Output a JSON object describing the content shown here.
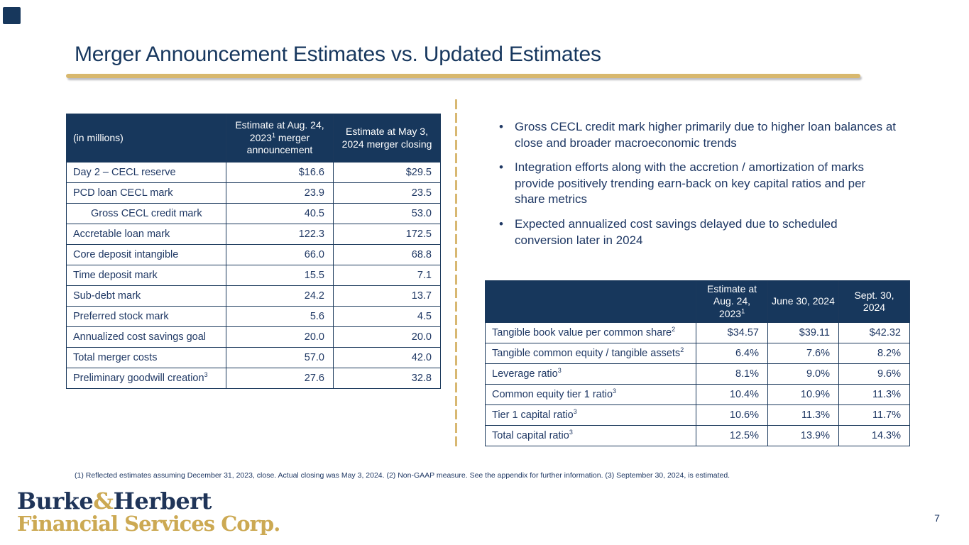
{
  "slide": {
    "title": "Merger Announcement Estimates vs. Updated Estimates",
    "page_number": "7",
    "footnote": "(1) Reflected estimates assuming December 31, 2023, close.  Actual closing was May 3, 2024. (2) Non-GAAP measure. See the appendix for further information. (3) September 30, 2024, is estimated.",
    "colors": {
      "navy": "#1F3864",
      "table_header_bg": "#17375C",
      "gold": "#D8B86E",
      "logo_gold": "#CCA953"
    }
  },
  "logo": {
    "burke": "Burke",
    "amp": "&",
    "herbert": "Herbert",
    "line2": "Financial Services Corp."
  },
  "left_table": {
    "headers": [
      "(in millions)",
      "Estimate at Aug. 24, 2023^1 merger announcement",
      "Estimate at May 3, 2024 merger closing"
    ],
    "rows": [
      {
        "label": "Day 2 – CECL reserve",
        "indent": false,
        "values": [
          "$16.6",
          "$29.5"
        ]
      },
      {
        "label": "PCD loan CECL mark",
        "indent": false,
        "values": [
          "23.9",
          "23.5"
        ]
      },
      {
        "label": "Gross CECL credit mark",
        "indent": true,
        "values": [
          "40.5",
          "53.0"
        ]
      },
      {
        "label": "Accretable loan mark",
        "indent": false,
        "values": [
          "122.3",
          "172.5"
        ]
      },
      {
        "label": "Core deposit intangible",
        "indent": false,
        "values": [
          "66.0",
          "68.8"
        ]
      },
      {
        "label": "Time deposit mark",
        "indent": false,
        "values": [
          "15.5",
          "7.1"
        ]
      },
      {
        "label": "Sub-debt mark",
        "indent": false,
        "values": [
          "24.2",
          "13.7"
        ]
      },
      {
        "label": "Preferred stock mark",
        "indent": false,
        "values": [
          "5.6",
          "4.5"
        ]
      },
      {
        "label": "Annualized cost savings goal",
        "indent": false,
        "values": [
          "20.0",
          "20.0"
        ]
      },
      {
        "label": "Total merger costs",
        "indent": false,
        "values": [
          "57.0",
          "42.0"
        ]
      },
      {
        "label": "Preliminary goodwill creation^3",
        "indent": false,
        "values": [
          "27.6",
          "32.8"
        ]
      }
    ]
  },
  "bullets": [
    "Gross CECL credit mark higher primarily due to higher loan balances at close and broader macroeconomic trends",
    "Integration efforts along with the accretion / amortization of marks provide positively trending earn-back on key capital ratios and per share metrics",
    "Expected annualized cost savings delayed due to scheduled conversion later in 2024"
  ],
  "right_table": {
    "headers": [
      "",
      "Estimate at Aug. 24, 2023^1",
      "June 30, 2024",
      "Sept. 30, 2024"
    ],
    "rows": [
      {
        "label": "Tangible book value per common share^2",
        "indent": false,
        "values": [
          "$34.57",
          "$39.11",
          "$42.32"
        ]
      },
      {
        "label": "Tangible common equity / tangible assets^2",
        "indent": false,
        "values": [
          "6.4%",
          "7.6%",
          "8.2%"
        ]
      },
      {
        "label": "Leverage ratio^3",
        "indent": false,
        "values": [
          "8.1%",
          "9.0%",
          "9.6%"
        ]
      },
      {
        "label": "Common equity tier 1 ratio^3",
        "indent": false,
        "values": [
          "10.4%",
          "10.9%",
          "11.3%"
        ]
      },
      {
        "label": "Tier 1 capital ratio^3",
        "indent": false,
        "values": [
          "10.6%",
          "11.3%",
          "11.7%"
        ]
      },
      {
        "label": "Total capital ratio^3",
        "indent": false,
        "values": [
          "12.5%",
          "13.9%",
          "14.3%"
        ]
      }
    ]
  },
  "bullet_glyph": "•"
}
